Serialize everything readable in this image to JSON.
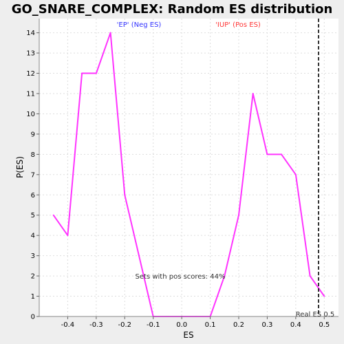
{
  "chart_data": {
    "type": "line",
    "title": "GO_SNARE_COMPLEX: Random ES distribution",
    "xlabel": "ES",
    "ylabel": "P(ES)",
    "xlim": [
      -0.5,
      0.55
    ],
    "ylim": [
      0,
      14.7
    ],
    "x_ticks": [
      -0.4,
      -0.3,
      -0.2,
      -0.1,
      0.0,
      0.1,
      0.2,
      0.3,
      0.4,
      0.5
    ],
    "x_tick_labels": [
      "-0.4",
      "-0.3",
      "-0.2",
      "-0.1",
      "0.0",
      "0.1",
      "0.2",
      "0.3",
      "0.4",
      "0.5"
    ],
    "y_ticks": [
      0,
      1,
      2,
      3,
      4,
      5,
      6,
      7,
      8,
      9,
      10,
      11,
      12,
      13,
      14
    ],
    "grid": true,
    "series": [
      {
        "color": "#ff33ff",
        "x": [
          -0.45,
          -0.4,
          -0.35,
          -0.3,
          -0.25,
          -0.2,
          -0.15,
          -0.1,
          -0.05,
          0.0,
          0.05,
          0.1,
          0.15,
          0.2,
          0.25,
          0.3,
          0.35,
          0.4,
          0.45,
          0.5
        ],
        "y": [
          5,
          4,
          12,
          12,
          14,
          6,
          3,
          0,
          0,
          0,
          0,
          0,
          2,
          5,
          11,
          8,
          8,
          7,
          2,
          1
        ]
      }
    ],
    "reference_line": {
      "x": 0.48,
      "label": "Real ES 0.5",
      "color": "#333333",
      "style": "dashed"
    },
    "annotations": {
      "neg_label": "'EP' (Neg ES)",
      "neg_color": "#3333ff",
      "pos_label": "'IUP' (Pos ES)",
      "pos_color": "#ff3333",
      "sets_label": "Sets with pos scores: 44%"
    }
  }
}
